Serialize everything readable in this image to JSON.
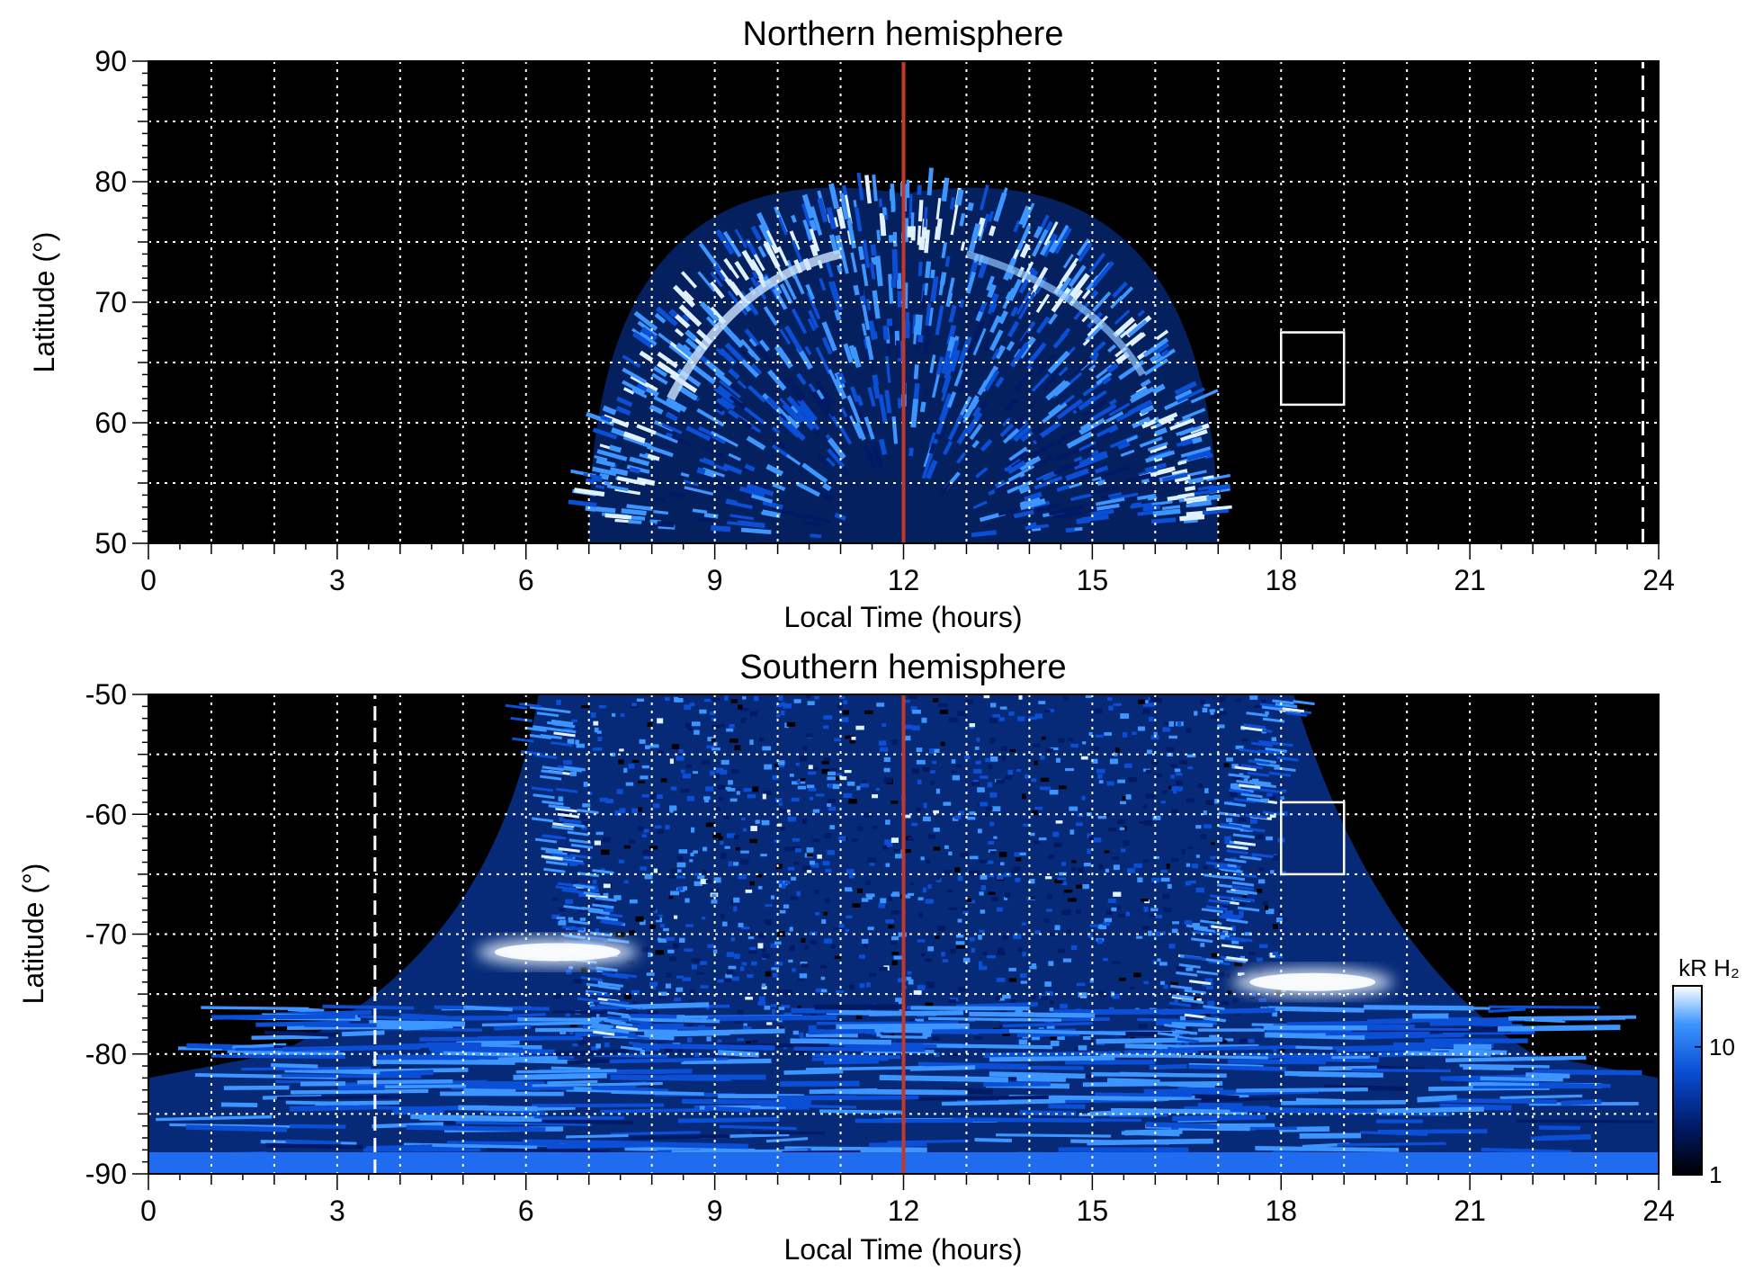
{
  "chart_data": [
    {
      "type": "heatmap",
      "title": "Northern hemisphere",
      "xlabel": "Local Time (hours)",
      "ylabel": "Latitude (°)",
      "xlim": [
        0,
        24
      ],
      "ylim": [
        50,
        90
      ],
      "xticks": [
        "0",
        "3",
        "6",
        "9",
        "12",
        "15",
        "18",
        "21",
        "24"
      ],
      "yticks": [
        "50",
        "60",
        "70",
        "80",
        "90"
      ],
      "grid": true,
      "background": "#000000",
      "colormap": [
        "#000000",
        "#001a66",
        "#0a4fd6",
        "#3d96ff",
        "#ffffff"
      ],
      "emission_region": {
        "lt_start": 7,
        "lt_end": 17,
        "center_lt": 12,
        "max_lat": 79
      },
      "noon_line": {
        "x": 12,
        "color": "#c0392b"
      },
      "dashed_line": {
        "x": 23.75,
        "lat_from": 50,
        "lat_to": 90
      },
      "box": {
        "x0": 18,
        "x1": 19,
        "y0": 61.5,
        "y1": 67.5
      }
    },
    {
      "type": "heatmap",
      "title": "Southern hemisphere",
      "xlabel": "Local Time (hours)",
      "ylabel": "Latitude (°)",
      "xlim": [
        0,
        24
      ],
      "ylim": [
        -90,
        -50
      ],
      "xticks": [
        "0",
        "3",
        "6",
        "9",
        "12",
        "15",
        "18",
        "21",
        "24"
      ],
      "yticks": [
        "-90",
        "-80",
        "-70",
        "-60",
        "-50"
      ],
      "grid": true,
      "background": "#000000",
      "colormap": [
        "#000000",
        "#001a66",
        "#0a4fd6",
        "#3d96ff",
        "#ffffff"
      ],
      "emission_region": {
        "lt_start": 5.5,
        "lt_end": 19.5,
        "center_lt": 12
      },
      "bright_features": [
        {
          "lt": 6.5,
          "lat": -71.5,
          "label": "bright patch dawn"
        },
        {
          "lt": 18.5,
          "lat": -74,
          "label": "bright patch dusk"
        }
      ],
      "noon_line": {
        "x": 12,
        "color": "#c0392b"
      },
      "dashed_line": {
        "x": 3.6,
        "lat_from": -90,
        "lat_to": -50
      },
      "box": {
        "x0": 18,
        "x1": 19,
        "y0": -65,
        "y1": -59
      }
    }
  ],
  "colorbar": {
    "label": "kR H₂",
    "ticks": [
      "1",
      "10"
    ],
    "tick_values": [
      1,
      10
    ],
    "range": [
      1,
      30
    ],
    "scale": "log"
  }
}
